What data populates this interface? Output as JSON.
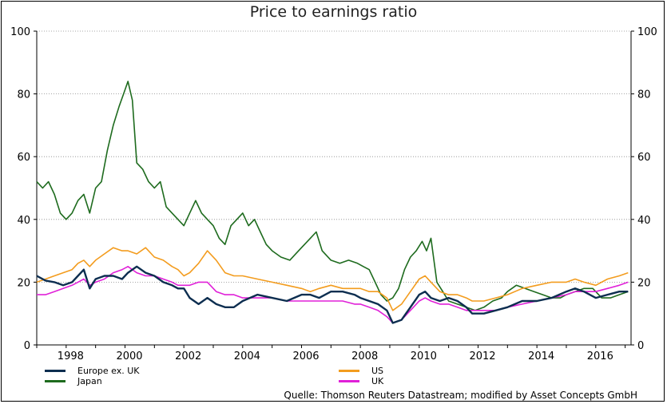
{
  "chart_data": {
    "type": "line",
    "title": "Price to earnings ratio",
    "xlabel": "",
    "ylabel": "",
    "ylim": [
      0,
      100
    ],
    "xlim": [
      1997.0,
      2017.2
    ],
    "y_ticks": [
      0,
      20,
      40,
      60,
      80,
      100
    ],
    "x_ticks": [
      "1998",
      "2000",
      "2002",
      "2004",
      "2006",
      "2008",
      "2010",
      "2012",
      "2014",
      "2016"
    ],
    "right_axis": true,
    "grid": "horizontal dotted",
    "legend_position": "bottom",
    "series": [
      {
        "name": "Europe ex. UK",
        "color": "#0d2e50",
        "x": [
          1997.0,
          1997.3,
          1997.6,
          1997.9,
          1998.2,
          1998.4,
          1998.6,
          1998.8,
          1999.0,
          1999.3,
          1999.6,
          1999.9,
          2000.1,
          2000.4,
          2000.7,
          2001.0,
          2001.3,
          2001.6,
          2001.8,
          2002.0,
          2002.2,
          2002.5,
          2002.8,
          2003.1,
          2003.4,
          2003.7,
          2004.0,
          2004.5,
          2005.0,
          2005.5,
          2006.0,
          2006.3,
          2006.6,
          2007.0,
          2007.4,
          2007.8,
          2008.0,
          2008.3,
          2008.6,
          2008.9,
          2009.1,
          2009.4,
          2009.7,
          2010.0,
          2010.2,
          2010.4,
          2010.7,
          2011.0,
          2011.3,
          2011.6,
          2011.8,
          2012.2,
          2012.6,
          2013.0,
          2013.5,
          2014.0,
          2014.5,
          2015.0,
          2015.3,
          2015.6,
          2016.0,
          2016.4,
          2016.8,
          2017.1
        ],
        "values": [
          22,
          20.5,
          20,
          19,
          20,
          22,
          24,
          18,
          21,
          22,
          22,
          21,
          23,
          25,
          23,
          22,
          20,
          19,
          18,
          18,
          15,
          13,
          15,
          13,
          12,
          12,
          14,
          16,
          15,
          14,
          16,
          16,
          15,
          17,
          17,
          16,
          15,
          14,
          13,
          11,
          7,
          8,
          12,
          16,
          17,
          15,
          14,
          15,
          14,
          12,
          10,
          10,
          11,
          12,
          14,
          14,
          15,
          17,
          18,
          17,
          15,
          16,
          17,
          17
        ]
      },
      {
        "name": "US",
        "color": "#f39c1e",
        "x": [
          1997.0,
          1997.3,
          1997.6,
          1997.9,
          1998.2,
          1998.4,
          1998.6,
          1998.8,
          1999.0,
          1999.3,
          1999.6,
          1999.9,
          2000.1,
          2000.4,
          2000.7,
          2001.0,
          2001.3,
          2001.6,
          2001.8,
          2002.0,
          2002.2,
          2002.5,
          2002.8,
          2003.1,
          2003.4,
          2003.7,
          2004.0,
          2004.5,
          2005.0,
          2005.5,
          2006.0,
          2006.3,
          2006.6,
          2007.0,
          2007.4,
          2007.8,
          2008.0,
          2008.3,
          2008.6,
          2008.9,
          2009.1,
          2009.4,
          2009.7,
          2010.0,
          2010.2,
          2010.4,
          2010.7,
          2011.0,
          2011.3,
          2011.6,
          2011.8,
          2012.2,
          2012.6,
          2013.0,
          2013.5,
          2014.0,
          2014.5,
          2015.0,
          2015.3,
          2015.6,
          2016.0,
          2016.4,
          2016.8,
          2017.1
        ],
        "values": [
          20,
          21,
          22,
          23,
          24,
          26,
          27,
          25,
          27,
          29,
          31,
          30,
          30,
          29,
          31,
          28,
          27,
          25,
          24,
          22,
          23,
          26,
          30,
          27,
          23,
          22,
          22,
          21,
          20,
          19,
          18,
          17,
          18,
          19,
          18,
          18,
          18,
          17,
          17,
          15,
          11,
          13,
          17,
          21,
          22,
          20,
          17,
          16,
          16,
          15,
          14,
          14,
          15,
          16,
          18,
          19,
          20,
          20,
          21,
          20,
          19,
          21,
          22,
          23
        ]
      },
      {
        "name": "Japan",
        "color": "#1e6b1e",
        "x": [
          1997.0,
          1997.2,
          1997.4,
          1997.6,
          1997.8,
          1998.0,
          1998.2,
          1998.4,
          1998.6,
          1998.8,
          1999.0,
          1999.2,
          1999.4,
          1999.6,
          1999.8,
          1999.95,
          2000.1,
          2000.25,
          2000.4,
          2000.6,
          2000.8,
          2001.0,
          2001.2,
          2001.4,
          2001.6,
          2001.8,
          2002.0,
          2002.2,
          2002.4,
          2002.6,
          2002.8,
          2003.0,
          2003.2,
          2003.4,
          2003.6,
          2003.8,
          2004.0,
          2004.2,
          2004.4,
          2004.6,
          2004.8,
          2005.0,
          2005.3,
          2005.6,
          2005.9,
          2006.1,
          2006.3,
          2006.5,
          2006.7,
          2007.0,
          2007.3,
          2007.6,
          2007.9,
          2008.1,
          2008.3,
          2008.5,
          2008.7,
          2008.9,
          2009.1,
          2009.3,
          2009.5,
          2009.7,
          2009.9,
          2010.1,
          2010.25,
          2010.4,
          2010.6,
          2010.8,
          2011.0,
          2011.3,
          2011.6,
          2011.9,
          2012.2,
          2012.5,
          2012.8,
          2013.0,
          2013.3,
          2013.6,
          2013.9,
          2014.2,
          2014.5,
          2014.8,
          2015.0,
          2015.3,
          2015.6,
          2015.9,
          2016.2,
          2016.5,
          2016.8,
          2017.1
        ],
        "values": [
          52,
          50,
          52,
          48,
          42,
          40,
          42,
          46,
          48,
          42,
          50,
          52,
          62,
          70,
          76,
          80,
          84,
          78,
          58,
          56,
          52,
          50,
          52,
          44,
          42,
          40,
          38,
          42,
          46,
          42,
          40,
          38,
          34,
          32,
          38,
          40,
          42,
          38,
          40,
          36,
          32,
          30,
          28,
          27,
          30,
          32,
          34,
          36,
          30,
          27,
          26,
          27,
          26,
          25,
          24,
          20,
          16,
          14,
          15,
          18,
          24,
          28,
          30,
          33,
          30,
          34,
          20,
          17,
          14,
          13,
          12,
          11,
          12,
          14,
          15,
          17,
          19,
          18,
          17,
          16,
          15,
          15,
          16,
          17,
          18,
          18,
          15,
          15,
          16,
          17
        ]
      },
      {
        "name": "UK",
        "color": "#e020d8",
        "x": [
          1997.0,
          1997.3,
          1997.6,
          1997.9,
          1998.2,
          1998.4,
          1998.6,
          1998.8,
          1999.0,
          1999.3,
          1999.6,
          1999.9,
          2000.1,
          2000.4,
          2000.7,
          2001.0,
          2001.3,
          2001.6,
          2001.8,
          2002.0,
          2002.2,
          2002.5,
          2002.8,
          2003.1,
          2003.4,
          2003.7,
          2004.0,
          2004.5,
          2005.0,
          2005.5,
          2006.0,
          2006.3,
          2006.6,
          2007.0,
          2007.4,
          2007.8,
          2008.0,
          2008.3,
          2008.6,
          2008.9,
          2009.1,
          2009.4,
          2009.7,
          2010.0,
          2010.2,
          2010.4,
          2010.7,
          2011.0,
          2011.3,
          2011.6,
          2011.8,
          2012.2,
          2012.6,
          2013.0,
          2013.5,
          2014.0,
          2014.5,
          2015.0,
          2015.3,
          2015.6,
          2016.0,
          2016.4,
          2016.8,
          2017.1
        ],
        "values": [
          16,
          16,
          17,
          18,
          19,
          20,
          21,
          19,
          20,
          21,
          23,
          24,
          25,
          23,
          22,
          22,
          21,
          20,
          19,
          19,
          19,
          20,
          20,
          17,
          16,
          16,
          15,
          15,
          15,
          14,
          14,
          14,
          14,
          14,
          14,
          13,
          13,
          12,
          11,
          9,
          7,
          8,
          11,
          14,
          15,
          14,
          13,
          13,
          12,
          11,
          11,
          11,
          11,
          12,
          13,
          14,
          15,
          16,
          17,
          17,
          17,
          18,
          19,
          20
        ]
      }
    ]
  },
  "source": "Quelle: Thomson Reuters Datastream; modified by Asset Concepts GmbH"
}
